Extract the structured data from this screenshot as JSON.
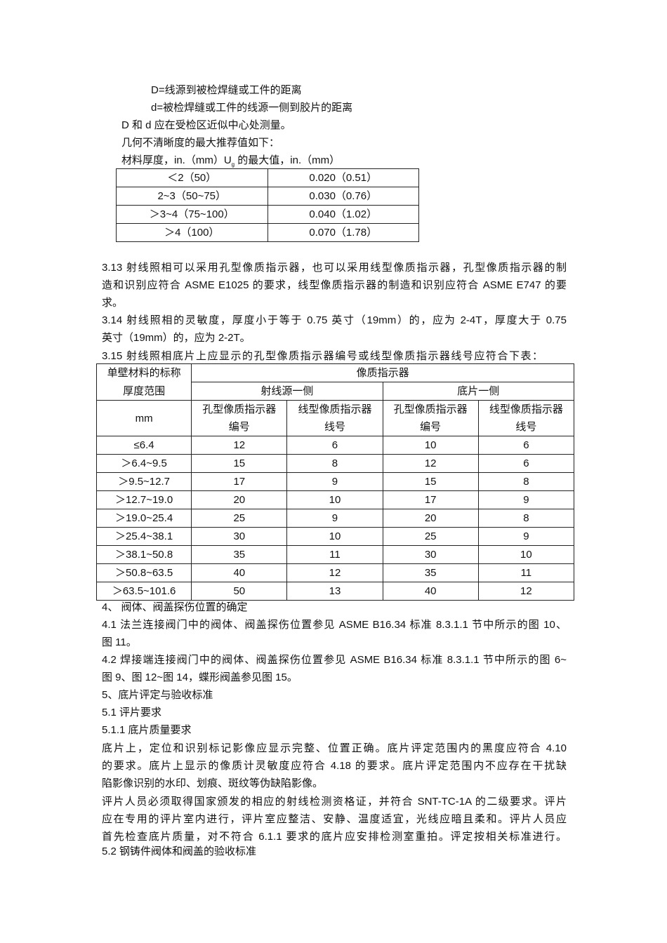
{
  "intro": {
    "def_D": "D=线源到被检焊缝或工件的距离",
    "def_d": "d=被检焊缝或工件的线源一侧到胶片的距离",
    "measure_note": "D 和 d 应在受检区近似中心处测量。",
    "geom_note": "几何不清晰度的最大推荐值如下：",
    "table_caption_a": "材料厚度，in.（mm）U",
    "table_caption_sub": "g",
    "table_caption_b": "的最大值，in.（mm）"
  },
  "ug_table": {
    "rows": [
      [
        "＜2（50）",
        "0.020（0.51）"
      ],
      [
        "2~3（50~75）",
        "0.030（0.76）"
      ],
      [
        "＞3~4（75~100）",
        "0.040（1.02）"
      ],
      [
        "＞4（100）",
        "0.070（1.78）"
      ]
    ]
  },
  "para_3_13": [
    "3.13 射线照相可以采用孔型像质指示器，也可以采用线型像质指示器，孔型像质指示器的制",
    "造和识别应符合 ASME E1025 的要求，线型像质指示器的制造和识别应符合 ASME E747 的要",
    "求。"
  ],
  "para_3_14": [
    "3.14 射线照相的灵敏度，厚度小于等于 0.75 英寸（19mm）的，应为 2-4T，厚度大于 0.75",
    "英寸（19mm）的，应为 2-2T。"
  ],
  "para_3_15": "3.15 射线照相底片上应显示的孔型像质指示器编号或线型像质指示器线号应符合下表：",
  "iqi_table": {
    "h_thickness_1": "单壁材料的标称",
    "h_thickness_2": "厚度范围",
    "h_unit": "mm",
    "h_iqi": "像质指示器",
    "h_source_side": "射线源一侧",
    "h_film_side": "底片一侧",
    "h_hole_1": "孔型像质指示器",
    "h_hole_2": "编号",
    "h_wire_1": "线型像质指示器",
    "h_wire_2": "线号",
    "rows": [
      [
        "≤6.4",
        "12",
        "6",
        "10",
        "6"
      ],
      [
        "＞6.4~9.5",
        "15",
        "8",
        "12",
        "6"
      ],
      [
        "＞9.5~12.7",
        "17",
        "9",
        "15",
        "8"
      ],
      [
        "＞12.7~19.0",
        "20",
        "10",
        "17",
        "9"
      ],
      [
        "＞19.0~25.4",
        "25",
        "9",
        "20",
        "8"
      ],
      [
        "＞25.4~38.1",
        "30",
        "10",
        "25",
        "9"
      ],
      [
        "＞38.1~50.8",
        "35",
        "11",
        "30",
        "10"
      ],
      [
        "＞50.8~63.5",
        "40",
        "12",
        "35",
        "11"
      ],
      [
        "＞63.5~101.6",
        "50",
        "13",
        "40",
        "12"
      ]
    ]
  },
  "section_4": {
    "heading": "4、 阀体、阀盖探伤位置的确定",
    "p4_1": [
      "4.1 法兰连接阀门中的阀体、阀盖探伤位置参见 ASME B16.34 标准 8.3.1.1 节中所示的图 10、",
      "图 11。"
    ],
    "p4_2": [
      "4.2 焊接端连接阀门中的阀体、阀盖探伤位置参见 ASME B16.34 标准 8.3.1.1 节中所示的图 6~",
      "图 9、图 12~图 14，蝶形阀盖参见图 15。"
    ]
  },
  "section_5": {
    "heading": "5、底片评定与验收标准",
    "h5_1": "5.1 评片要求",
    "h5_1_1": "5.1.1 底片质量要求",
    "p_film": [
      "底片上，定位和识别标记影像应显示完整、位置正确。底片评定范围内的黑度应符合 4.10",
      "的要求。底片上显示的像质计灵敏度应符合 4.18 的要求。底片评定范围内不应存在干扰缺",
      "陷影像识别的水印、划痕、斑纹等伪缺陷影像。"
    ],
    "p_staff": [
      "评片人员必须取得国家颁发的相应的射线检测资格证，并符合 SNT-TC-1A 的二级要求。评片",
      "应在专用的评片室内进行，评片室应整洁、安静、温度适宜，光线应暗且柔和。评片人员应",
      "首先检查底片质量，对不符合 6.1.1 要求的底片应安排检测室重拍。评定按相关标准进行。"
    ],
    "h5_2": "5.2 钢铸件阀体和阀盖的验收标准"
  }
}
